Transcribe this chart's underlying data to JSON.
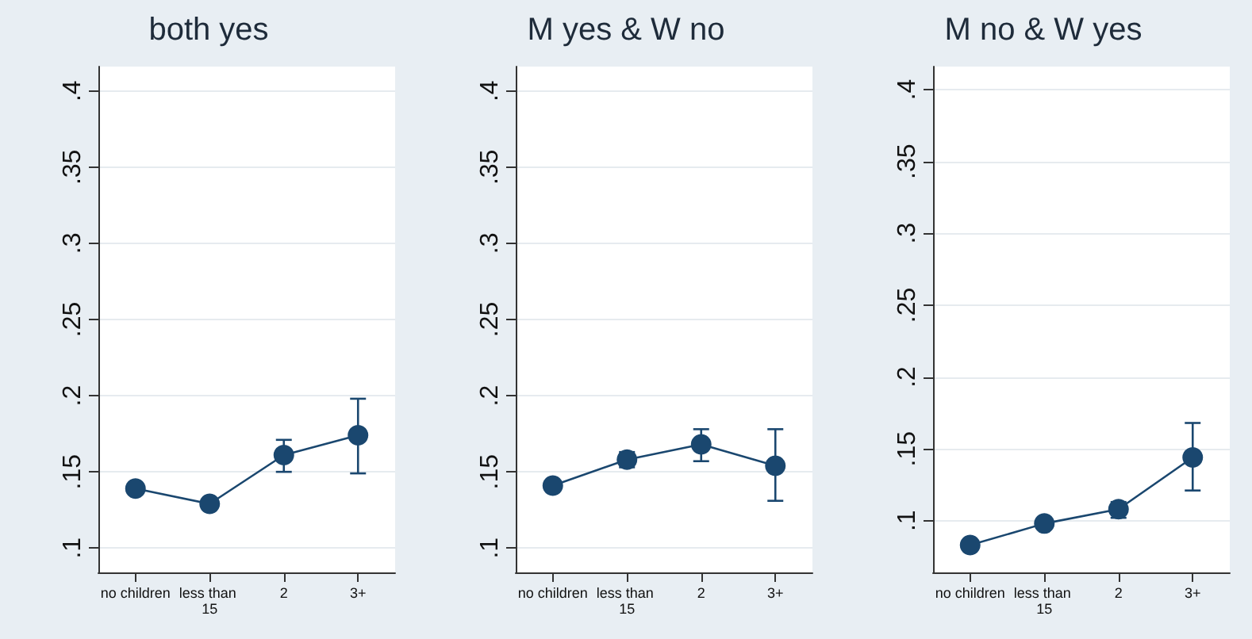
{
  "chart_data": [
    {
      "type": "line",
      "title": "both yes",
      "categories": [
        "no children",
        "less than 15",
        "2",
        "3+"
      ],
      "series": [
        {
          "color": "#1a476f",
          "values": [
            0.139,
            0.129,
            0.161,
            0.174
          ],
          "errors": [
            null,
            null,
            [
              0.15,
              0.171
            ],
            [
              0.149,
              0.198
            ]
          ]
        }
      ],
      "ylim": [
        0.084,
        0.416
      ],
      "yticks": [
        {
          "value": 0.1,
          "label": ".1"
        },
        {
          "value": 0.15,
          "label": ".15"
        },
        {
          "value": 0.2,
          "label": ".2"
        },
        {
          "value": 0.25,
          "label": ".25"
        },
        {
          "value": 0.3,
          "label": ".3"
        },
        {
          "value": 0.35,
          "label": ".35"
        },
        {
          "value": 0.4,
          "label": ".4"
        }
      ],
      "grid": "y",
      "marker": "circle",
      "line_style": "solid"
    },
    {
      "type": "line",
      "title": "M yes & W no",
      "categories": [
        "no children",
        "less than 15",
        "2",
        "3+"
      ],
      "series": [
        {
          "color": "#1a476f",
          "values": [
            0.141,
            0.158,
            0.168,
            0.154
          ],
          "errors": [
            null,
            [
              0.153,
              0.163
            ],
            [
              0.157,
              0.178
            ],
            [
              0.131,
              0.178
            ]
          ]
        }
      ],
      "ylim": [
        0.084,
        0.416
      ],
      "yticks": [
        {
          "value": 0.1,
          "label": ".1"
        },
        {
          "value": 0.15,
          "label": ".15"
        },
        {
          "value": 0.2,
          "label": ".2"
        },
        {
          "value": 0.25,
          "label": ".25"
        },
        {
          "value": 0.3,
          "label": ".3"
        },
        {
          "value": 0.35,
          "label": ".35"
        },
        {
          "value": 0.4,
          "label": ".4"
        }
      ],
      "grid": "y",
      "marker": "circle",
      "line_style": "solid"
    },
    {
      "type": "line",
      "title": "M no & W yes",
      "categories": [
        "no children",
        "less than 15",
        "2",
        "3+"
      ],
      "series": [
        {
          "color": "#1a476f",
          "values": [
            0.083,
            0.098,
            0.108,
            0.144
          ],
          "errors": [
            null,
            null,
            [
              0.102,
              0.113
            ],
            [
              0.121,
              0.168
            ]
          ]
        }
      ],
      "ylim": [
        0.064,
        0.416
      ],
      "yticks": [
        {
          "value": 0.1,
          "label": ".1"
        },
        {
          "value": 0.15,
          "label": ".15"
        },
        {
          "value": 0.2,
          "label": ".2"
        },
        {
          "value": 0.25,
          "label": ".25"
        },
        {
          "value": 0.3,
          "label": ".3"
        },
        {
          "value": 0.35,
          "label": ".35"
        },
        {
          "value": 0.4,
          "label": ".4"
        }
      ],
      "grid": "y",
      "marker": "circle",
      "line_style": "solid"
    }
  ]
}
